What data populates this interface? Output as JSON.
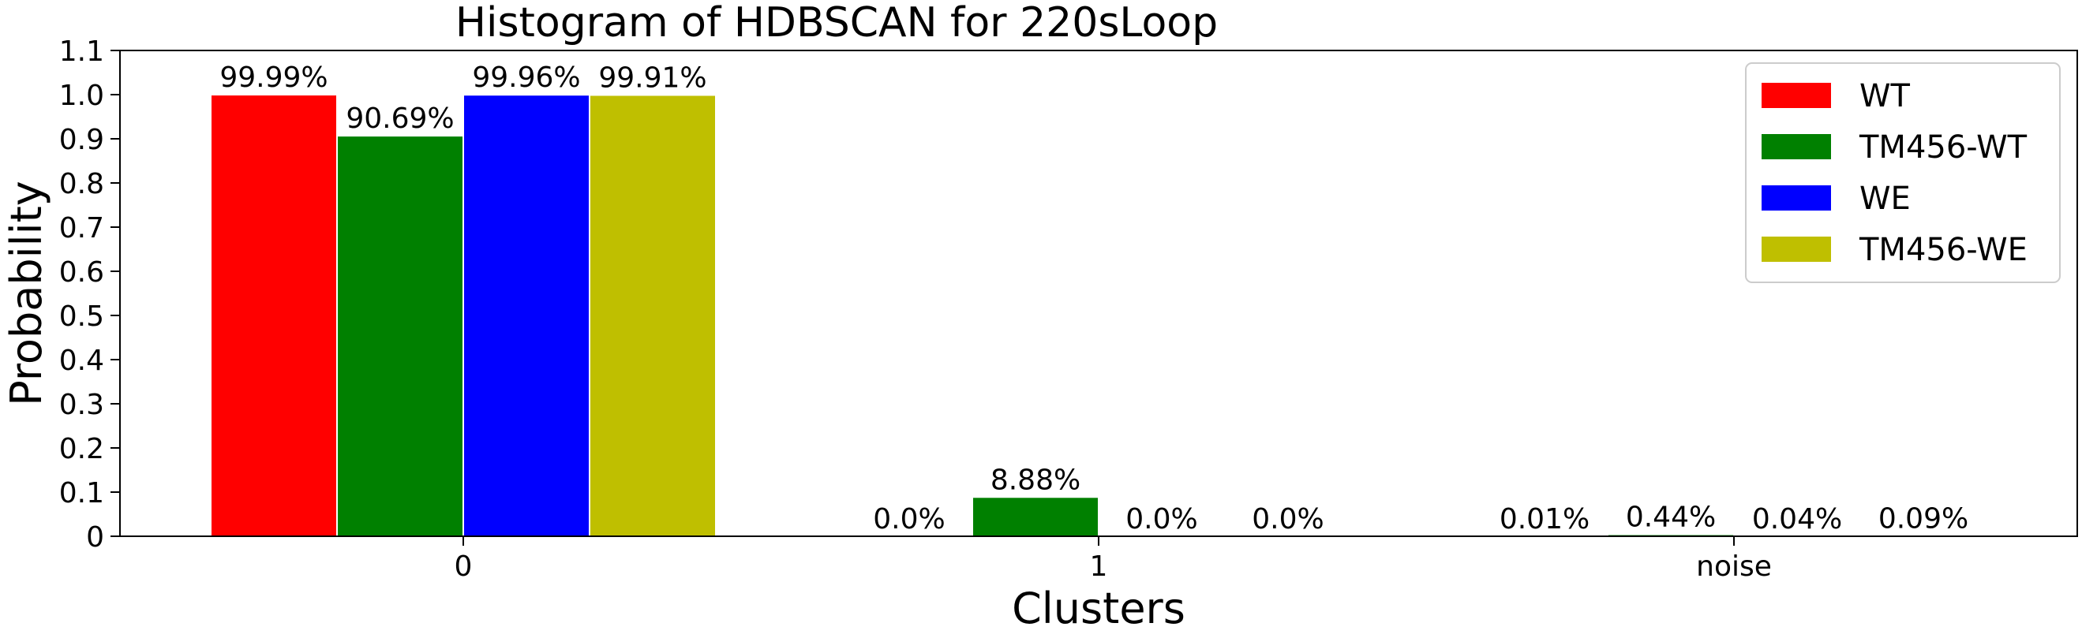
{
  "chart_data": {
    "type": "bar",
    "title": "Histogram of HDBSCAN for 220sLoop",
    "xlabel": "Clusters",
    "ylabel": "Probability",
    "ylim": [
      0,
      1.1
    ],
    "yticks": [
      "0",
      "0.1",
      "0.2",
      "0.3",
      "0.4",
      "0.5",
      "0.6",
      "0.7",
      "0.8",
      "0.9",
      "1.0",
      "1.1"
    ],
    "categories": [
      "0",
      "1",
      "noise"
    ],
    "series": [
      {
        "name": "WT",
        "color": "#ff0000",
        "values": [
          0.9999,
          0.0,
          0.0001
        ],
        "labels": [
          "99.99%",
          "0.0%",
          "0.01%"
        ]
      },
      {
        "name": "TM456-WT",
        "color": "#008000",
        "values": [
          0.9069,
          0.0888,
          0.0044
        ],
        "labels": [
          "90.69%",
          "8.88%",
          "0.44%"
        ]
      },
      {
        "name": "WE",
        "color": "#0000ff",
        "values": [
          0.9996,
          0.0,
          0.0004
        ],
        "labels": [
          "99.96%",
          "0.0%",
          "0.04%"
        ]
      },
      {
        "name": "TM456-WE",
        "color": "#bfbf00",
        "values": [
          0.9991,
          0.0,
          0.0009
        ],
        "labels": [
          "99.91%",
          "0.0%",
          "0.09%"
        ]
      }
    ],
    "legend_position": "top-right",
    "grid": false
  }
}
